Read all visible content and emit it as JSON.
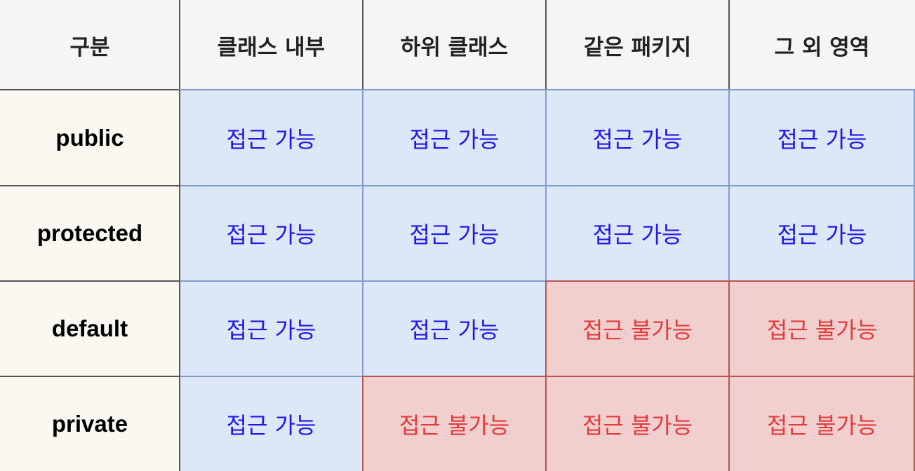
{
  "table": {
    "headers": [
      "구분",
      "클래스 내부",
      "하위 클래스",
      "같은 패키지",
      "그 외 영역"
    ],
    "rows": [
      {
        "label": "public",
        "cells": [
          {
            "text": "접근 가능",
            "status": "allowed"
          },
          {
            "text": "접근 가능",
            "status": "allowed"
          },
          {
            "text": "접근 가능",
            "status": "allowed"
          },
          {
            "text": "접근 가능",
            "status": "allowed"
          }
        ]
      },
      {
        "label": "protected",
        "cells": [
          {
            "text": "접근 가능",
            "status": "allowed"
          },
          {
            "text": "접근 가능",
            "status": "allowed"
          },
          {
            "text": "접근 가능",
            "status": "allowed"
          },
          {
            "text": "접근 가능",
            "status": "allowed"
          }
        ]
      },
      {
        "label": "default",
        "cells": [
          {
            "text": "접근 가능",
            "status": "allowed"
          },
          {
            "text": "접근 가능",
            "status": "allowed"
          },
          {
            "text": "접근 불가능",
            "status": "denied"
          },
          {
            "text": "접근 불가능",
            "status": "denied"
          }
        ]
      },
      {
        "label": "private",
        "cells": [
          {
            "text": "접근 가능",
            "status": "allowed"
          },
          {
            "text": "접근 불가능",
            "status": "denied"
          },
          {
            "text": "접근 불가능",
            "status": "denied"
          },
          {
            "text": "접근 불가능",
            "status": "denied"
          }
        ]
      }
    ]
  },
  "colors": {
    "header_bg": "#f5f5f5",
    "label_bg": "#faf8f1",
    "allowed_bg": "#dce7f8",
    "allowed_text": "#1f17e6",
    "allowed_border": "#7f9ccd",
    "denied_bg": "#f2cfcf",
    "denied_text": "#e33a3a",
    "denied_border": "#b85450",
    "grid_line": "#555555"
  }
}
